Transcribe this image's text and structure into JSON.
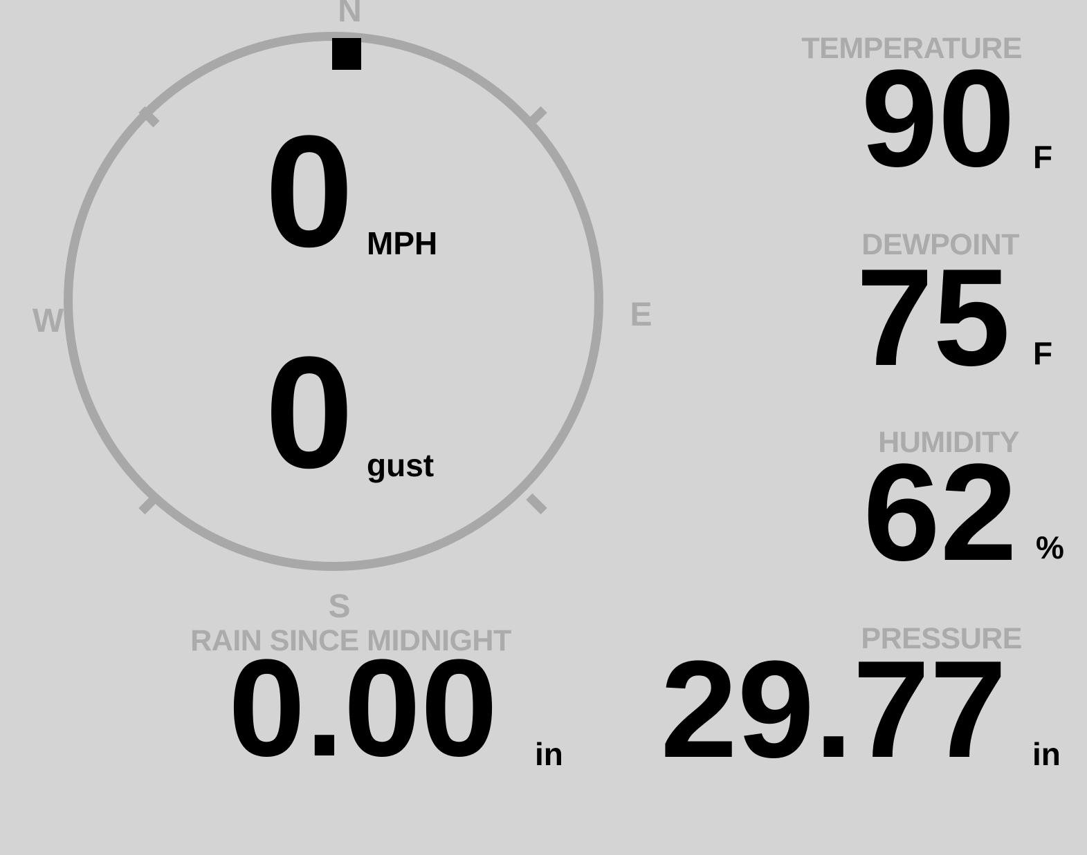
{
  "app": "weather-station-console",
  "colors": {
    "background": "#d4d4d4",
    "muted_gray": "#ababab",
    "ring_gray": "#a8a8a8",
    "value_black": "#000000",
    "direction_marker": "#000000"
  },
  "compass": {
    "directions": {
      "north": "N",
      "east": "E",
      "south": "S",
      "west": "W"
    },
    "marker_direction": "N",
    "wind_speed": {
      "value": "0",
      "unit": "MPH"
    },
    "wind_gust": {
      "value": "0",
      "unit": "gust"
    }
  },
  "metrics": {
    "temperature": {
      "label": "TEMPERATURE",
      "value": "90",
      "unit": "F"
    },
    "dewpoint": {
      "label": "DEWPOINT",
      "value": "75",
      "unit": "F"
    },
    "humidity": {
      "label": "HUMIDITY",
      "value": "62",
      "unit": "%"
    },
    "rain": {
      "label": "RAIN SINCE MIDNIGHT",
      "value": "0.00",
      "unit": "in"
    },
    "pressure": {
      "label": "PRESSURE",
      "value": "29.77",
      "unit": "in"
    }
  }
}
